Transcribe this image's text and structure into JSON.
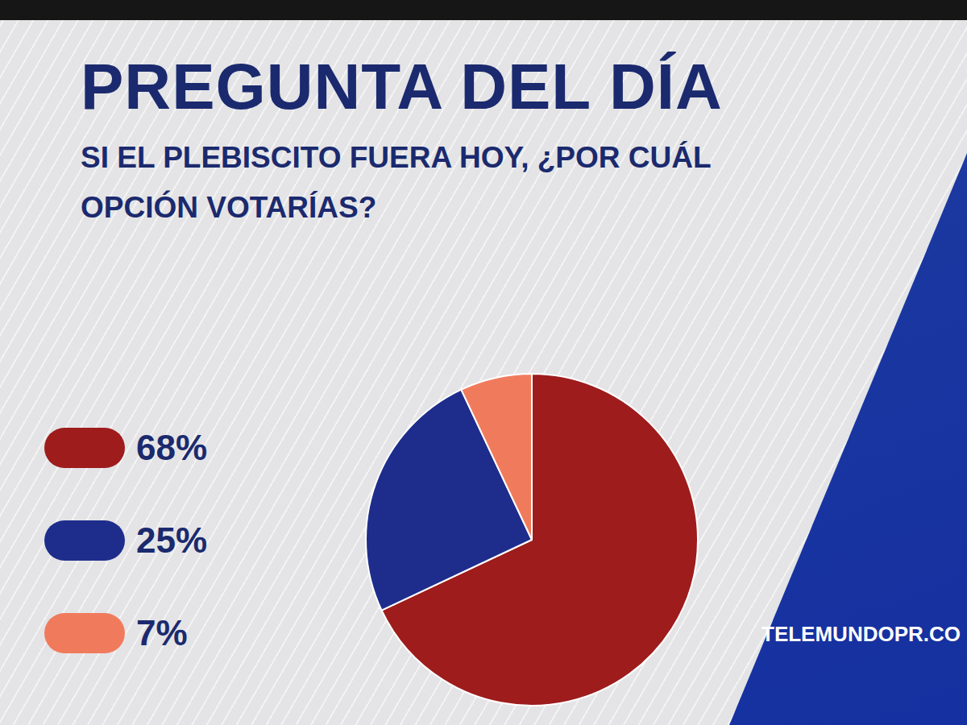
{
  "chart_data": {
    "type": "pie",
    "title": "PREGUNTA DEL DÍA",
    "subtitle": "SI EL PLEBISCITO FUERA HOY, ¿POR CUÁL OPCIÓN VOTARÍAS?",
    "categories": [
      null,
      null,
      null
    ],
    "values": [
      68,
      25,
      7
    ],
    "value_labels": [
      "68%",
      "25%",
      "7%"
    ],
    "colors": [
      "#9e1c1c",
      "#1e2d8c",
      "#f07b5c"
    ],
    "legend": "left",
    "data_labels": false,
    "annotations": [
      "TELEMUNDOPR.CO"
    ]
  }
}
